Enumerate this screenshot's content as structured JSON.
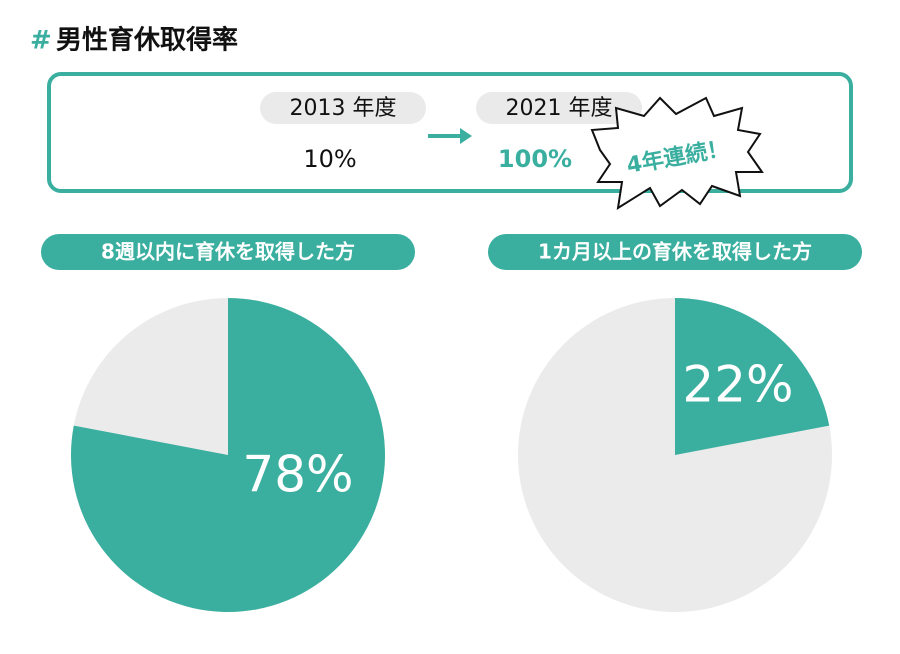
{
  "title": "男性育休取得率",
  "comparison": {
    "before": {
      "label": "2013 年度",
      "value": "10%"
    },
    "after": {
      "label": "2021 年度",
      "value": "100%"
    },
    "badge": "4年連続！"
  },
  "chart_data": [
    {
      "type": "pie",
      "title": "8週以内に育休を取得した方",
      "values": [
        78
      ],
      "value_labels": [
        "78%"
      ],
      "color": "#3aaf9f"
    },
    {
      "type": "pie",
      "title": "1カ月以上の育休を取得した方",
      "values": [
        22
      ],
      "value_labels": [
        "22%"
      ],
      "color": "#3aaf9f"
    }
  ]
}
